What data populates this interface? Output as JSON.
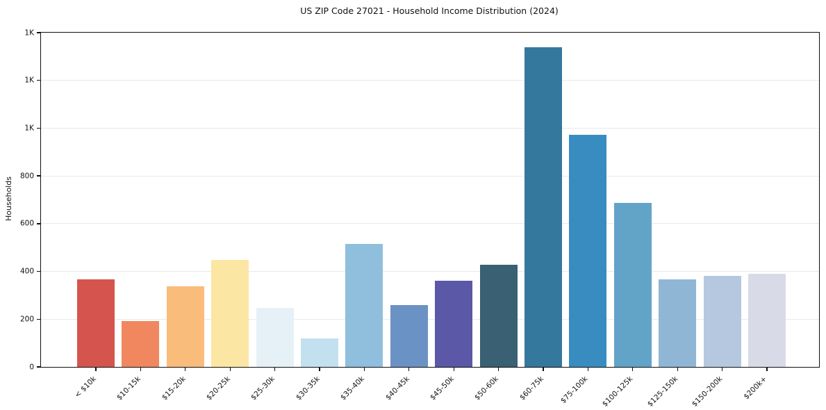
{
  "window": {
    "background_color": "#ffffff"
  },
  "chart_data": {
    "type": "bar",
    "title": "US ZIP Code 27021 - Household Income Distribution (2024)",
    "xlabel": "",
    "ylabel": "Households",
    "categories": [
      "< $10k",
      "$10-15k",
      "$15-20k",
      "$20-25k",
      "$25-30k",
      "$30-35k",
      "$35-40k",
      "$40-45k",
      "$45-50k",
      "$50-60k",
      "$60-75k",
      "$75-100k",
      "$100-125k",
      "$125-150k",
      "$150-200k",
      "$200k+"
    ],
    "values": [
      368,
      191,
      339,
      447,
      246,
      120,
      514,
      259,
      362,
      429,
      1338,
      972,
      688,
      366,
      382,
      390
    ],
    "bar_colors": [
      "#d6544e",
      "#f0875e",
      "#fabc7a",
      "#fce6a4",
      "#e5f1f7",
      "#c2e0ed",
      "#90bedd",
      "#6b92c4",
      "#5a58a7",
      "#3a6073",
      "#35789e",
      "#388cbf",
      "#62a4c8",
      "#90b6d6",
      "#b6c8e0",
      "#d8dae8"
    ],
    "ylim": [
      0,
      1400
    ],
    "yticks": [
      {
        "value": 0,
        "label": "0"
      },
      {
        "value": 200,
        "label": "200"
      },
      {
        "value": 400,
        "label": "400"
      },
      {
        "value": 600,
        "label": "600"
      },
      {
        "value": 800,
        "label": "800"
      },
      {
        "value": 1000,
        "label": "1K"
      },
      {
        "value": 1200,
        "label": "1K"
      },
      {
        "value": 1400,
        "label": "1K"
      }
    ],
    "grid": "horizontal",
    "grid_color": "#e9e9e9",
    "spine_color": "#0d0d0d",
    "legend": "none"
  }
}
